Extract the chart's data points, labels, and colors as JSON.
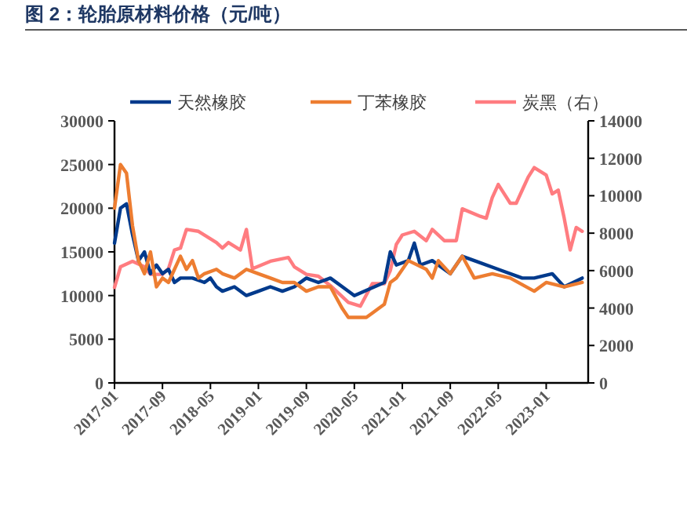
{
  "chart_data": {
    "type": "line",
    "title": "图 2：轮胎原材料价格（元/吨）",
    "xlim": [
      "2017-01",
      "2023-08"
    ],
    "xticks": [
      "2017-01",
      "2017-09",
      "2018-05",
      "2019-01",
      "2019-09",
      "2020-05",
      "2021-01",
      "2021-09",
      "2022-05",
      "2023-01"
    ],
    "ylim": [
      0,
      30000
    ],
    "yticks": [
      0,
      5000,
      10000,
      15000,
      20000,
      25000,
      30000
    ],
    "y2lim": [
      0,
      14000
    ],
    "y2ticks": [
      0,
      2000,
      4000,
      6000,
      8000,
      10000,
      12000,
      14000
    ],
    "legend": "top",
    "grid": false,
    "marker": "none",
    "line_style": "solid",
    "series": [
      {
        "name": "天然橡胶",
        "color": "#003a8c",
        "x": [
          "2017-01",
          "2017-02",
          "2017-03",
          "2017-04",
          "2017-05",
          "2017-06",
          "2017-07",
          "2017-08",
          "2017-09",
          "2017-10",
          "2017-11",
          "2017-12",
          "2018-02",
          "2018-04",
          "2018-05",
          "2018-06",
          "2018-07",
          "2018-09",
          "2018-11",
          "2019-01",
          "2019-03",
          "2019-05",
          "2019-07",
          "2019-09",
          "2019-11",
          "2020-01",
          "2020-03",
          "2020-05",
          "2020-10",
          "2020-11",
          "2020-12",
          "2021-02",
          "2021-03",
          "2021-04",
          "2021-06",
          "2021-09",
          "2021-11",
          "2022-01",
          "2022-05",
          "2022-09",
          "2022-11",
          "2023-02",
          "2023-04",
          "2023-07"
        ],
        "values": [
          16000,
          20000,
          20500,
          17000,
          14000,
          15000,
          12500,
          13500,
          12500,
          13000,
          11500,
          12000,
          12000,
          11500,
          12000,
          11000,
          10500,
          11000,
          10000,
          10500,
          11000,
          10500,
          11000,
          12000,
          11500,
          12000,
          11000,
          10000,
          11500,
          15000,
          13500,
          14000,
          16000,
          13500,
          14000,
          12500,
          14500,
          14000,
          13000,
          12000,
          12000,
          12500,
          11000,
          12000
        ]
      },
      {
        "name": "丁苯橡胶",
        "color": "#ed7d31",
        "x": [
          "2017-01",
          "2017-02",
          "2017-03",
          "2017-04",
          "2017-05",
          "2017-06",
          "2017-07",
          "2017-08",
          "2017-09",
          "2017-10",
          "2017-11",
          "2017-12",
          "2018-01",
          "2018-02",
          "2018-03",
          "2018-04",
          "2018-06",
          "2018-07",
          "2018-09",
          "2018-11",
          "2019-01",
          "2019-03",
          "2019-05",
          "2019-07",
          "2019-09",
          "2019-11",
          "2020-01",
          "2020-03",
          "2020-04",
          "2020-07",
          "2020-08",
          "2020-10",
          "2020-11",
          "2020-12",
          "2021-02",
          "2021-05",
          "2021-06",
          "2021-07",
          "2021-09",
          "2021-11",
          "2022-01",
          "2022-04",
          "2022-07",
          "2022-11",
          "2023-01",
          "2023-04",
          "2023-07"
        ],
        "values": [
          20000,
          25000,
          24000,
          18000,
          14000,
          12500,
          15000,
          11000,
          12000,
          11500,
          13000,
          14500,
          13000,
          14000,
          12000,
          12500,
          13000,
          12500,
          12000,
          13000,
          12500,
          12000,
          11500,
          11500,
          10500,
          11000,
          11000,
          8500,
          7500,
          7500,
          8000,
          9000,
          11500,
          12000,
          14000,
          13000,
          12000,
          14000,
          12500,
          14500,
          12000,
          12500,
          12000,
          10500,
          11500,
          11000,
          11500
        ]
      },
      {
        "name": "炭黑（右）",
        "color": "#ff7c80",
        "axis": "y2",
        "x": [
          "2017-01",
          "2017-02",
          "2017-04",
          "2017-06",
          "2017-07",
          "2017-09",
          "2017-10",
          "2017-11",
          "2017-12",
          "2018-01",
          "2018-03",
          "2018-06",
          "2018-07",
          "2018-08",
          "2018-10",
          "2018-11",
          "2018-12",
          "2019-03",
          "2019-06",
          "2019-07",
          "2019-09",
          "2019-11",
          "2020-01",
          "2020-04",
          "2020-06",
          "2020-08",
          "2020-10",
          "2020-11",
          "2020-12",
          "2021-01",
          "2021-03",
          "2021-05",
          "2021-06",
          "2021-08",
          "2021-10",
          "2021-11",
          "2022-02",
          "2022-03",
          "2022-04",
          "2022-05",
          "2022-07",
          "2022-08",
          "2022-09",
          "2022-10",
          "2022-11",
          "2023-01",
          "2023-02",
          "2023-03",
          "2023-04",
          "2023-05",
          "2023-06",
          "2023-07"
        ],
        "values": [
          5100,
          6200,
          6500,
          6200,
          5800,
          5800,
          6100,
          7100,
          7200,
          8200,
          8100,
          7500,
          7200,
          7500,
          7100,
          8200,
          6100,
          6500,
          6700,
          6200,
          5800,
          5700,
          5200,
          4300,
          4100,
          5300,
          5300,
          6000,
          7400,
          7900,
          8100,
          7600,
          8200,
          7600,
          7600,
          9300,
          8900,
          8800,
          9900,
          10600,
          9600,
          9600,
          10300,
          11000,
          11500,
          11100,
          10100,
          10300,
          8800,
          7100,
          8300,
          8100
        ]
      }
    ]
  }
}
